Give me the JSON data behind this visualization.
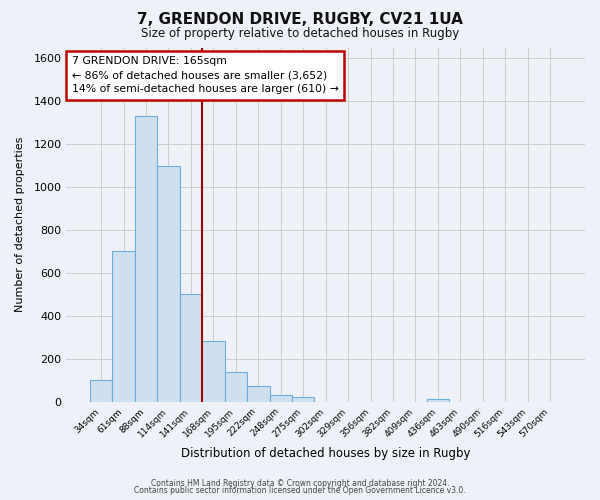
{
  "title": "7, GRENDON DRIVE, RUGBY, CV21 1UA",
  "subtitle": "Size of property relative to detached houses in Rugby",
  "xlabel": "Distribution of detached houses by size in Rugby",
  "ylabel": "Number of detached properties",
  "footer_line1": "Contains HM Land Registry data © Crown copyright and database right 2024.",
  "footer_line2": "Contains public sector information licensed under the Open Government Licence v3.0.",
  "bin_labels": [
    "34sqm",
    "61sqm",
    "88sqm",
    "114sqm",
    "141sqm",
    "168sqm",
    "195sqm",
    "222sqm",
    "248sqm",
    "275sqm",
    "302sqm",
    "329sqm",
    "356sqm",
    "382sqm",
    "409sqm",
    "436sqm",
    "463sqm",
    "490sqm",
    "516sqm",
    "543sqm",
    "570sqm"
  ],
  "bin_values": [
    100,
    700,
    1330,
    1100,
    500,
    285,
    140,
    75,
    30,
    20,
    0,
    0,
    0,
    0,
    0,
    15,
    0,
    0,
    0,
    0,
    0
  ],
  "bar_color": "#cfe0f0",
  "bar_edge_color": "#6aaddb",
  "vline_color": "#a00000",
  "annotation_line1": "7 GRENDON DRIVE: 165sqm",
  "annotation_line2": "← 86% of detached houses are smaller (3,652)",
  "annotation_line3": "14% of semi-detached houses are larger (610) →",
  "annotation_box_color": "#ffffff",
  "annotation_box_edge_color": "#c00000",
  "ylim": [
    0,
    1650
  ],
  "yticks": [
    0,
    200,
    400,
    600,
    800,
    1000,
    1200,
    1400,
    1600
  ],
  "grid_color": "#cccccc",
  "background_color": "#eef2f8"
}
